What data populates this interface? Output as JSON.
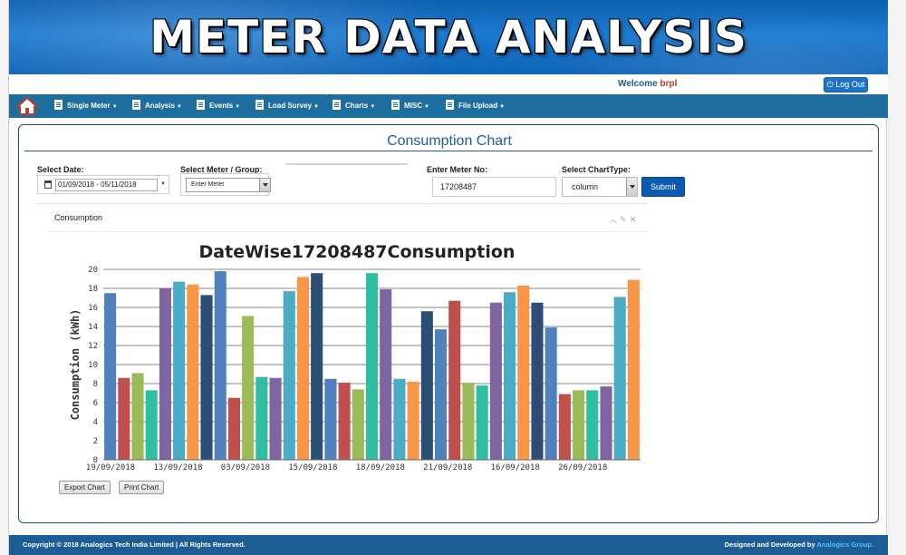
{
  "header": {
    "title": "METER DATA ANALYSIS"
  },
  "user": {
    "welcome": "Welcome",
    "name": "brpl",
    "logout_label": "Log Out"
  },
  "nav": {
    "home_icon": "house-icon",
    "items": [
      {
        "label": "Single Meter"
      },
      {
        "label": "Analysis"
      },
      {
        "label": "Events"
      },
      {
        "label": "Load Survey"
      },
      {
        "label": "Charts"
      },
      {
        "label": "MISC"
      },
      {
        "label": "File Upload"
      }
    ]
  },
  "panel": {
    "title": "Consumption Chart"
  },
  "form": {
    "date_label": "Select Date:",
    "date_value": "01/09/2018 - 05/11/2018",
    "meter_group_label": "Select Meter / Group:",
    "meter_group_value": "Enter Meter",
    "meter_no_label": "Enter Meter No:",
    "meter_no_value": "17208487",
    "chart_type_label": "Select ChartType:",
    "chart_type_value": "column",
    "submit_label": "Submit"
  },
  "widget": {
    "title": "Consumption",
    "tools": "^ ✎ ✕"
  },
  "chart_data": {
    "type": "bar",
    "title": "DateWise17208487Consumption",
    "ylabel": "Consumption (kWh)",
    "xlabel": "",
    "ylim": [
      0,
      20
    ],
    "yticks": [
      0,
      2,
      4,
      6,
      8,
      10,
      12,
      14,
      16,
      18,
      20
    ],
    "tick_labels": [
      "19/09/2018",
      "13/09/2018",
      "03/09/2018",
      "15/09/2018",
      "18/09/2018",
      "21/09/2018",
      "16/09/2018",
      "26/09/2018"
    ],
    "grid": true,
    "values": [
      17.5,
      8.6,
      9.1,
      7.3,
      18.0,
      18.7,
      18.4,
      17.3,
      19.8,
      6.5,
      15.1,
      8.7,
      8.6,
      17.7,
      19.2,
      19.6,
      8.5,
      8.1,
      7.4,
      19.6,
      17.9,
      8.5,
      8.2,
      15.6,
      13.7,
      16.7,
      8.1,
      7.8,
      16.5,
      17.6,
      18.3,
      16.5,
      13.9,
      6.9,
      7.3,
      7.3,
      7.7,
      17.1,
      18.9
    ],
    "colors": [
      "#4f81bd",
      "#c0504d",
      "#9bbb59",
      "#2fbfa0",
      "#8064a2",
      "#4bacc6",
      "#f79646",
      "#2c4d75"
    ]
  },
  "buttons": {
    "export": "Export Chart",
    "print": "Print Chart"
  },
  "footer": {
    "copyright": "Copyright © 2018 Analogics Tech India Limited | All Rights Reserved.",
    "designed": "Designed and Developed by",
    "brand": "Analogics Group."
  }
}
